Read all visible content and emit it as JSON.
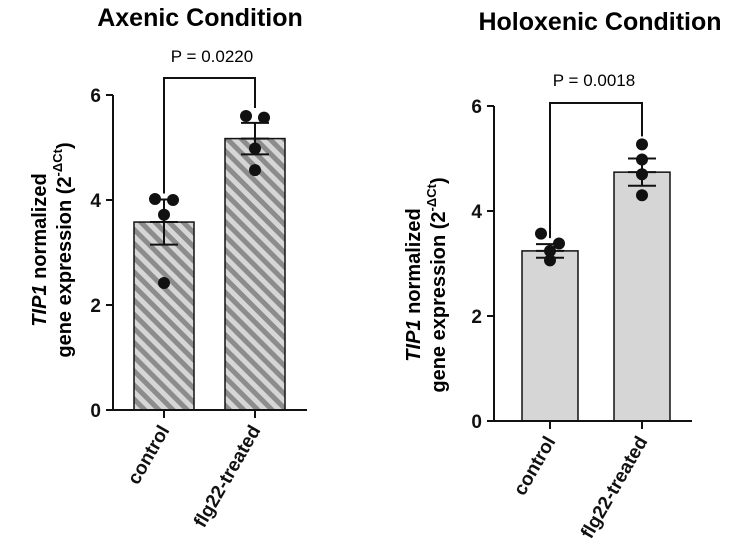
{
  "chart_data": [
    {
      "type": "bar",
      "title": "Axenic Condition",
      "categories": [
        "control",
        "flg22-treated"
      ],
      "values": [
        3.58,
        5.17
      ],
      "sem": [
        0.43,
        0.3
      ],
      "points": [
        [
          4.02,
          4.0,
          3.72,
          2.42
        ],
        [
          5.6,
          5.57,
          4.98,
          4.57
        ]
      ],
      "bar_style": "hatched",
      "ylabel_italic": "TIP1",
      "ylabel_line1_rest": " normalized",
      "ylabel_line2": "gene expression (2",
      "ylabel_sup": "-ΔCt",
      "ylabel_close": ")",
      "ylim": [
        0,
        6
      ],
      "yticks": [
        "0",
        "2",
        "4",
        "6"
      ],
      "comparison": "P = 0.0220"
    },
    {
      "type": "bar",
      "title": "Holoxenic Condition",
      "categories": [
        "control",
        "flg22-treated"
      ],
      "values": [
        3.24,
        4.74
      ],
      "sem": [
        0.13,
        0.26
      ],
      "points": [
        [
          3.57,
          3.38,
          3.24,
          3.06
        ],
        [
          5.27,
          4.98,
          4.7,
          4.3
        ]
      ],
      "bar_style": "solid",
      "ylabel_italic": "TIP1",
      "ylabel_line1_rest": " normalized",
      "ylabel_line2": "gene expression (2",
      "ylabel_sup": "-ΔCt",
      "ylabel_close": ")",
      "ylim": [
        0,
        6
      ],
      "yticks": [
        "0",
        "2",
        "4",
        "6"
      ],
      "comparison": "P = 0.0018"
    }
  ],
  "colors": {
    "bar_fill": "#d6d6d6",
    "hatch": "#8c8c8c",
    "ink": "#111111"
  }
}
